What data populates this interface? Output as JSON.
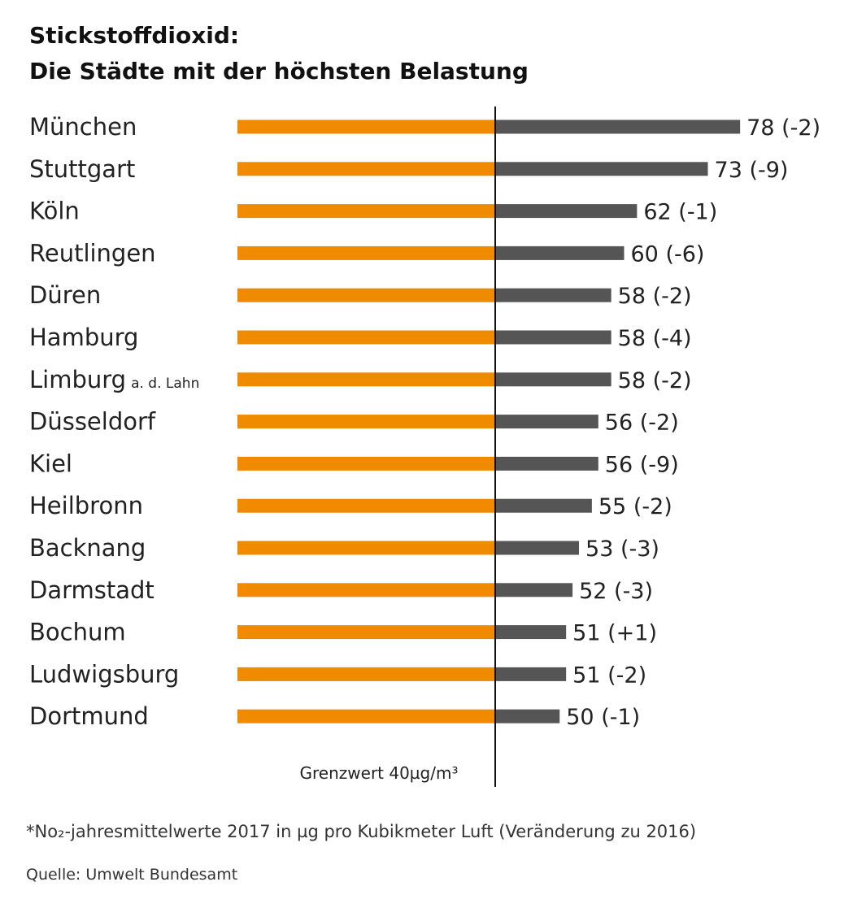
{
  "chart_data": {
    "type": "bar",
    "title_lines": [
      "Stickstoffdioxid:",
      "Die Städte mit der höchsten Belastung"
    ],
    "categories": [
      "München",
      "Stuttgart",
      "Köln",
      "Reutlingen",
      "Düren",
      "Hamburg",
      "Limburg",
      "Düsseldorf",
      "Kiel",
      "Heilbronn",
      "Backnang",
      "Darmstadt",
      "Bochum",
      "Ludwigsburg",
      "Dortmund"
    ],
    "category_suffix": [
      "",
      "",
      "",
      "",
      "",
      "",
      "a. d. Lahn",
      "",
      "",
      "",
      "",
      "",
      "",
      "",
      ""
    ],
    "values": [
      78,
      73,
      62,
      60,
      58,
      58,
      58,
      56,
      56,
      55,
      53,
      52,
      51,
      51,
      50
    ],
    "changes": [
      "-2",
      "-9",
      "-1",
      "-6",
      "-2",
      "-4",
      "-2",
      "-2",
      "-9",
      "-2",
      "-3",
      "-3",
      "+1",
      "-2",
      "-1"
    ],
    "value_labels": [
      "78 (-2)",
      "73 (-9)",
      "62 (-1)",
      "60 (-6)",
      "58 (-2)",
      "58 (-4)",
      "58 (-2)",
      "56 (-2)",
      "56 (-9)",
      "55 (-2)",
      "53 (-3)",
      "52 (-3)",
      "51 (+1)",
      "51 (-2)",
      "50 (-1)"
    ],
    "threshold": 40,
    "threshold_label": "Grenzwert 40µg/m³",
    "xlim": [
      0,
      80
    ],
    "colors": {
      "below_threshold": "#f08a00",
      "above_threshold": "#555555",
      "threshold_line": "#111111"
    }
  },
  "footnote": "*No₂-jahresmittelwerte 2017 in µg pro Kubikmeter Luft (Veränderung zu 2016)",
  "source": "Quelle: Umwelt Bundesamt"
}
